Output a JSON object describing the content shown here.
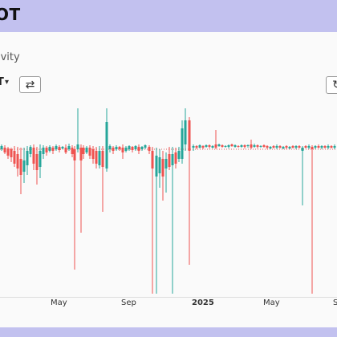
{
  "header": {
    "title": "OT"
  },
  "panel": {
    "subtitle": "ivity",
    "pair_label": "T",
    "caret": "▾",
    "swap_icon": "⇄",
    "refresh_icon": "↻"
  },
  "x_axis": {
    "ticks": [
      "May",
      "Sep",
      "2025",
      "May",
      "S"
    ]
  },
  "colors": {
    "up": "#26a69a",
    "down": "#ef5350",
    "background": "#fafafa",
    "frame": "#c2c1ef"
  }
}
